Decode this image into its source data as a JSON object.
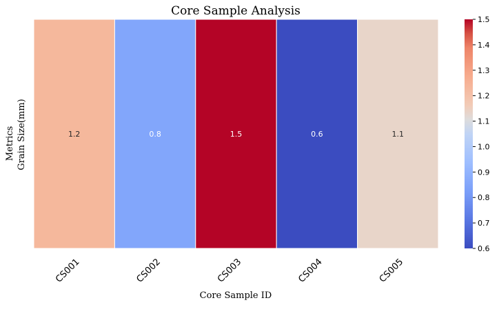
{
  "chart_data": {
    "type": "heatmap",
    "title": "Core Sample Analysis",
    "xlabel": "Core Sample ID",
    "ylabel": "Metrics",
    "categories": [
      "CS001",
      "CS002",
      "CS003",
      "CS004",
      "CS005"
    ],
    "rows": [
      "Grain Size(mm)"
    ],
    "values": [
      [
        1.2,
        0.8,
        1.5,
        0.6,
        1.1
      ]
    ],
    "annotations": [
      "1.2",
      "0.8",
      "1.5",
      "0.6",
      "1.1"
    ],
    "colormap": "coolwarm",
    "vmin": 0.6,
    "vmax": 1.5,
    "colorbar_ticks": [
      "0.6",
      "0.7",
      "0.8",
      "0.9",
      "1.0",
      "1.1",
      "1.2",
      "1.3",
      "1.4",
      "1.5"
    ],
    "cell_colors": [
      "#f5b89c",
      "#82a6fb",
      "#b40426",
      "#3b4cc0",
      "#e8d5c9"
    ],
    "annotation_colors": [
      "#262626",
      "#ffffff",
      "#ffffff",
      "#ffffff",
      "#262626"
    ],
    "grid_line_color": "#ffffff"
  }
}
